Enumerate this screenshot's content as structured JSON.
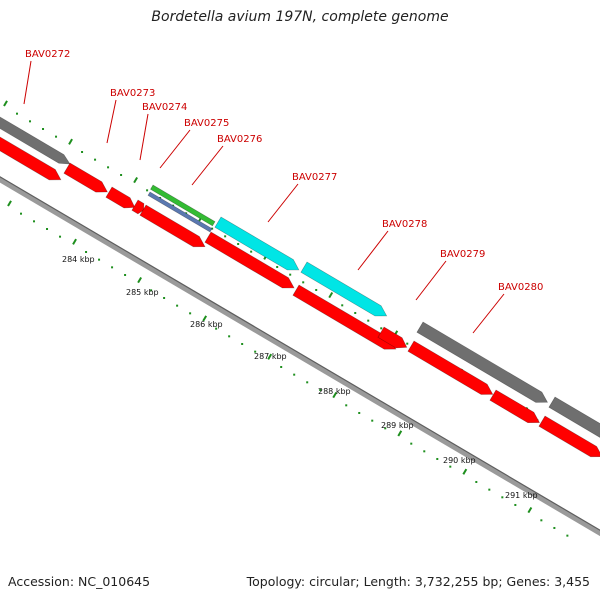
{
  "title": "Bordetella avium 197N, complete genome",
  "footer": {
    "accession": "Accession: NC_010645",
    "stats": "Topology: circular; Length: 3,732,255 bp; Genes: 3,455"
  },
  "colors": {
    "cds": "#ff0000",
    "gene": "#6f6f6f",
    "rna": "#00e5e5",
    "other_a": "#33bb33",
    "other_b": "#5a78b0",
    "backbone": "#888888",
    "tick": "#1e8f1e",
    "label": "#cc0000"
  },
  "gene_labels": [
    {
      "id": "BAV0272"
    },
    {
      "id": "BAV0273"
    },
    {
      "id": "BAV0274"
    },
    {
      "id": "BAV0275"
    },
    {
      "id": "BAV0276"
    },
    {
      "id": "BAV0277"
    },
    {
      "id": "BAV0278"
    },
    {
      "id": "BAV0279"
    },
    {
      "id": "BAV0280"
    }
  ],
  "kbp_ticks": [
    "284 kbp",
    "285 kbp",
    "286 kbp",
    "287 kbp",
    "288 kbp",
    "289 kbp",
    "290 kbp",
    "291 kbp"
  ]
}
